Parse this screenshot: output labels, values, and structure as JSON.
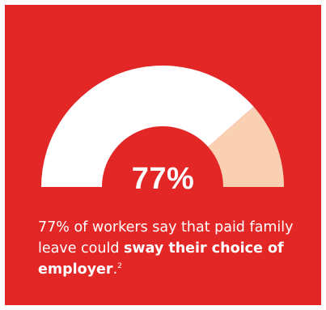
{
  "colors": {
    "background": "#e32726",
    "gauge_filled": "#ffffff",
    "gauge_remaining": "#f9d0b2"
  },
  "chart_data": {
    "type": "gauge",
    "value_percent": 77,
    "range": [
      0,
      100
    ],
    "center_label": "77%",
    "caption": {
      "text_before": "77% of workers say that paid family leave could ",
      "text_bold": "sway their choice of employer",
      "text_after": ".",
      "footnote": "2"
    }
  }
}
